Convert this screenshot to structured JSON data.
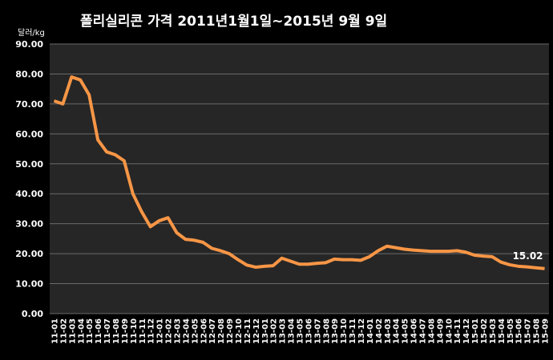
{
  "chart_data": {
    "type": "line",
    "title": "폴리실리콘 가격    2011년1월1일~2015년 9월 9일",
    "y_label": "달러/kg",
    "categories": [
      "11-01",
      "11-02",
      "11-03",
      "11-04",
      "11-05",
      "11-06",
      "11-07",
      "11-08",
      "11-09",
      "11-10",
      "11-11",
      "11-12",
      "12-01",
      "12-02",
      "12-03",
      "12-04",
      "12-05",
      "12-06",
      "12-07",
      "12-08",
      "12-09",
      "12-10",
      "12-11",
      "12-12",
      "13-01",
      "13-02",
      "13-03",
      "13-04",
      "13-05",
      "13-06",
      "13-07",
      "13-08",
      "13-09",
      "13-10",
      "13-11",
      "13-12",
      "14-01",
      "14-02",
      "14-03",
      "14-04",
      "14-05",
      "14-06",
      "14-07",
      "14-08",
      "14-09",
      "14-10",
      "14-11",
      "14-12",
      "15-01",
      "15-02",
      "15-03",
      "15-04",
      "15-05",
      "15-06",
      "15-07",
      "15-08",
      "15-09"
    ],
    "values": [
      71,
      70,
      79,
      78,
      73,
      58,
      54,
      53,
      51,
      40,
      34,
      29,
      31,
      32,
      27,
      24.8,
      24.5,
      23.8,
      21.8,
      21,
      20,
      18,
      16.2,
      15.5,
      15.8,
      16,
      18.5,
      17.5,
      16.5,
      16.5,
      16.8,
      17,
      18.2,
      18,
      18,
      17.8,
      19,
      21,
      22.5,
      22,
      21.5,
      21.2,
      21,
      20.8,
      20.8,
      20.8,
      21,
      20.5,
      19.5,
      19.2,
      19,
      17.2,
      16.3,
      15.8,
      15.6,
      15.3,
      15.02
    ],
    "color": "#f79646",
    "ylim": [
      0,
      90
    ],
    "yticks": [
      {
        "value": 0,
        "label": "0.00"
      },
      {
        "value": 10,
        "label": "10.00"
      },
      {
        "value": 20,
        "label": "20.00"
      },
      {
        "value": 30,
        "label": "30.00"
      },
      {
        "value": 40,
        "label": "40.00"
      },
      {
        "value": 50,
        "label": "50.00"
      },
      {
        "value": 60,
        "label": "60.00"
      },
      {
        "value": 70,
        "label": "70.00"
      },
      {
        "value": 80,
        "label": "80.00"
      },
      {
        "value": 90,
        "label": "90.00"
      }
    ],
    "grid": true
  }
}
